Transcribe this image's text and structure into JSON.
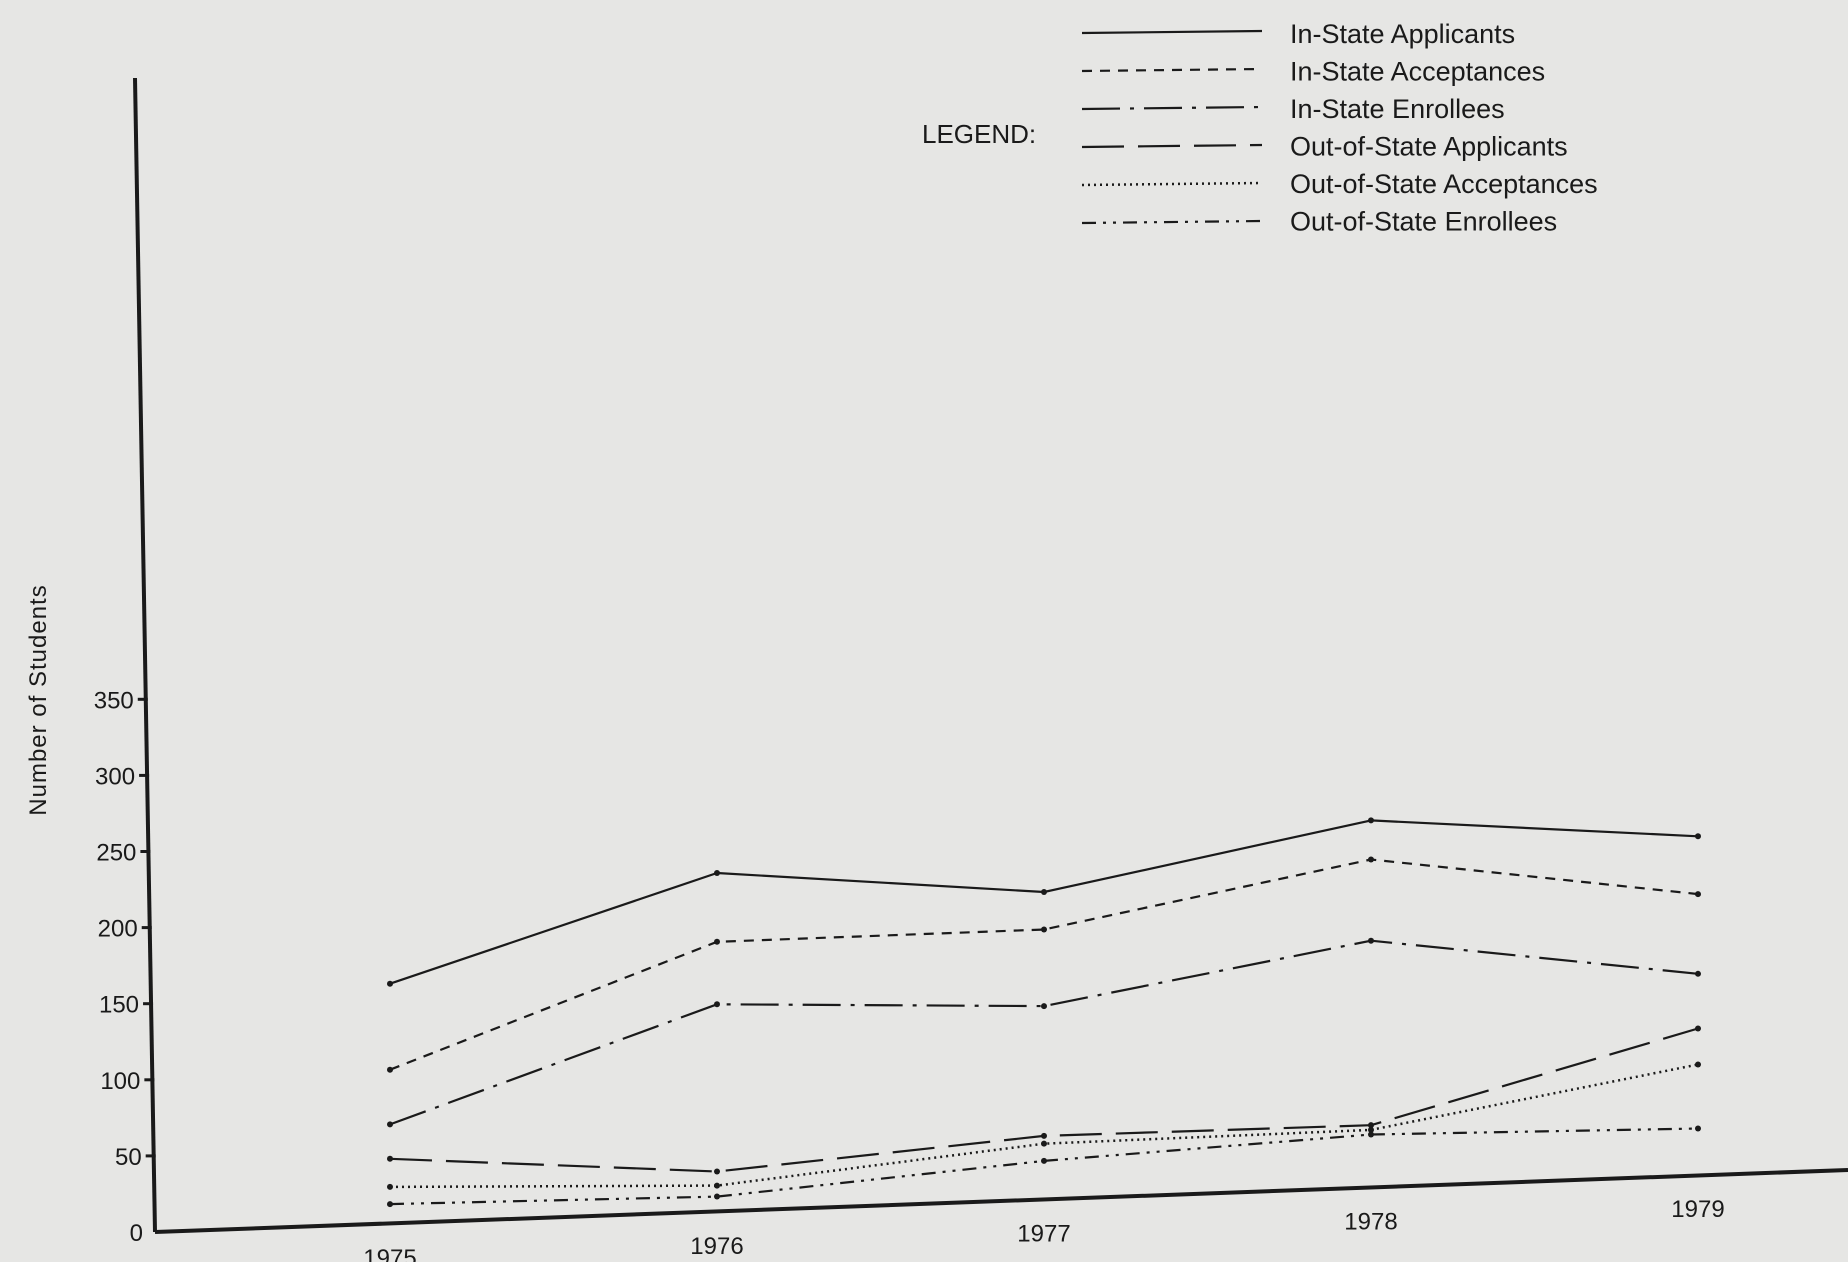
{
  "chart_data": {
    "type": "line",
    "title": "",
    "xlabel": "",
    "ylabel": "Number of Students",
    "categories": [
      "1975",
      "1976",
      "1977",
      "1978",
      "1979"
    ],
    "ylim": [
      0,
      350
    ],
    "yticks": [
      "0",
      "50",
      "100",
      "150",
      "200",
      "250",
      "300",
      "350"
    ],
    "legend_title": "LEGEND:",
    "legend_position": "top-right",
    "grid": false,
    "series": [
      {
        "name": "In-State Applicants",
        "values": [
          155,
          218,
          198,
          236,
          218
        ],
        "style": "solid"
      },
      {
        "name": "In-State Acceptances",
        "values": [
          100,
          174,
          174,
          211,
          181
        ],
        "style": "short-dash"
      },
      {
        "name": "In-State Enrollees",
        "values": [
          65,
          134,
          125,
          159,
          130
        ],
        "style": "long-dash-dot"
      },
      {
        "name": "Out-of-State Applicants",
        "values": [
          43,
          27,
          42,
          41,
          95
        ],
        "style": "long-dash"
      },
      {
        "name": "Out-of-State Acceptances",
        "values": [
          25,
          18,
          37,
          38,
          72
        ],
        "style": "dotted"
      },
      {
        "name": "Out-of-State Enrollees",
        "values": [
          14,
          11,
          26,
          35,
          31
        ],
        "style": "dash-dot-dot"
      }
    ],
    "colors": {
      "ink": "#1a1a1a",
      "paper": "#e6e6e4"
    }
  }
}
